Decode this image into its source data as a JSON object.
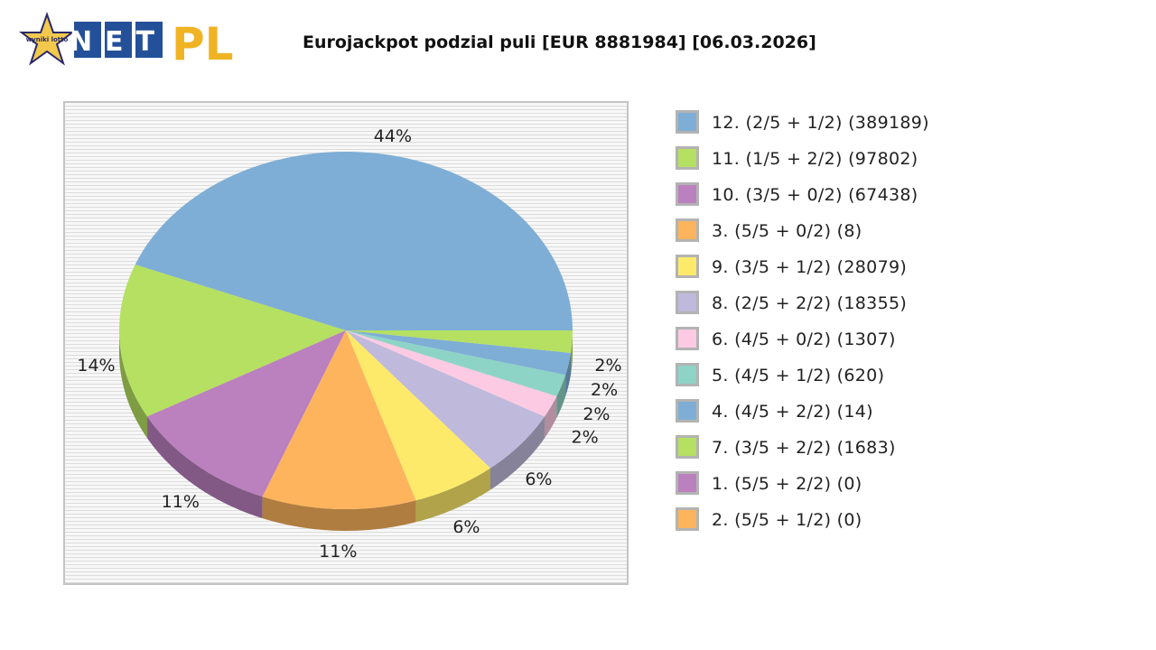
{
  "page": {
    "title": "Eurojackpot podzial puli [EUR 8881984] [06.03.2026]",
    "logo": {
      "badge_text": "wyniki lotto",
      "brand_net": "NET",
      "brand_pl": "PL"
    }
  },
  "chart_data": {
    "type": "pie",
    "title": "Eurojackpot podzial puli [EUR 8881984] [06.03.2026]",
    "legend_position": "right",
    "start_angle_deg": 0,
    "direction": "counterclockwise",
    "slices": [
      {
        "label": "12. (2/5 + 1/2) (389189)",
        "value": 389189,
        "pct_label": "44%",
        "color": "#7eaed5",
        "shade": "#567a98"
      },
      {
        "label": "11. (1/5 + 2/2) (97802)",
        "value": 97802,
        "pct_label": "14%",
        "color": "#b5e061",
        "shade": "#7e9c43"
      },
      {
        "label": "10. (3/5 + 0/2) (67438)",
        "value": 67438,
        "pct_label": "11%",
        "color": "#bb80be",
        "shade": "#825985"
      },
      {
        "label": "3. (5/5 + 0/2) (8)",
        "value": 8,
        "pct_label": "11%",
        "color": "#fdb45c",
        "shade": "#b07d40"
      },
      {
        "label": "9. (3/5 + 1/2) (28079)",
        "value": 28079,
        "pct_label": "6%",
        "color": "#feea6a",
        "shade": "#b1a34a"
      },
      {
        "label": "8. (2/5 + 2/2) (18355)",
        "value": 18355,
        "pct_label": "6%",
        "color": "#bfbadb",
        "shade": "#858299"
      },
      {
        "label": "6. (4/5 + 0/2) (1307)",
        "value": 1307,
        "pct_label": "2%",
        "color": "#fdcae3",
        "shade": "#b18d9e"
      },
      {
        "label": "5. (4/5 + 1/2) (620)",
        "value": 620,
        "pct_label": "2%",
        "color": "#8ed4c6",
        "shade": "#63948a"
      },
      {
        "label": "4. (4/5 + 2/2) (14)",
        "value": 14,
        "pct_label": "2%",
        "color": "#7eaed5",
        "shade": "#567a98"
      },
      {
        "label": "7. (3/5 + 2/2) (1683)",
        "value": 1683,
        "pct_label": "2%",
        "color": "#b5e061",
        "shade": "#7e9c43"
      },
      {
        "label": "1. (5/5 + 2/2) (0)",
        "value": 0,
        "pct_label": "",
        "color": "#bb80be",
        "shade": "#825985"
      },
      {
        "label": "2. (5/5 + 1/2) (0)",
        "value": 0,
        "pct_label": "",
        "color": "#fdb45c",
        "shade": "#b07d40"
      }
    ],
    "display_percent": [
      44,
      14,
      11,
      11,
      6,
      6,
      2,
      2,
      2,
      2,
      0,
      0
    ]
  }
}
